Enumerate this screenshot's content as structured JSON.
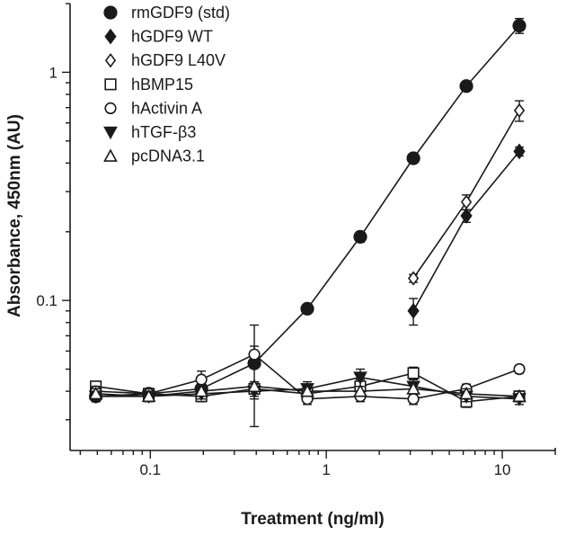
{
  "chart_data": {
    "type": "line",
    "xlabel": "Treatment (ng/ml)",
    "ylabel": "Absorbance, 450nm (AU)",
    "xscale": "log",
    "yscale": "log",
    "xlim": [
      0.035,
      20
    ],
    "ylim": [
      0.022,
      2.0
    ],
    "xticks": [
      {
        "value": 0.1,
        "label": "0.1"
      },
      {
        "value": 1,
        "label": "1"
      },
      {
        "value": 10,
        "label": "10"
      }
    ],
    "yticks": [
      {
        "value": 0.1,
        "label": "0.1"
      },
      {
        "value": 1,
        "label": "1"
      }
    ],
    "legend_position": "top-left",
    "series": [
      {
        "name": "rmGDF9 (std)",
        "marker": "circle-filled",
        "color": "#1a1a1a",
        "x": [
          0.049,
          0.098,
          0.195,
          0.39,
          0.78,
          1.56,
          3.125,
          6.25,
          12.5
        ],
        "y": [
          0.038,
          0.039,
          0.041,
          0.053,
          0.092,
          0.19,
          0.42,
          0.87,
          1.6
        ],
        "err": [
          0.002,
          0.002,
          0.003,
          0.025,
          0.004,
          0.01,
          0.02,
          0.04,
          0.12
        ]
      },
      {
        "name": "hGDF9 WT",
        "marker": "diamond-filled",
        "color": "#1a1a1a",
        "x": [
          3.125,
          6.25,
          12.5
        ],
        "y": [
          0.09,
          0.235,
          0.45
        ],
        "err": [
          0.012,
          0.015,
          0.02
        ]
      },
      {
        "name": "hGDF9 L40V",
        "marker": "diamond-open",
        "color": "#1a1a1a",
        "x": [
          3.125,
          6.25,
          12.5
        ],
        "y": [
          0.125,
          0.27,
          0.68
        ],
        "err": [
          0.005,
          0.02,
          0.07
        ]
      },
      {
        "name": "hBMP15",
        "marker": "square-open",
        "color": "#1a1a1a",
        "x": [
          0.049,
          0.098,
          0.195,
          0.39,
          0.78,
          1.56,
          3.125,
          6.25,
          12.5
        ],
        "y": [
          0.042,
          0.039,
          0.038,
          0.041,
          0.039,
          0.042,
          0.048,
          0.036,
          0.038
        ],
        "err": [
          0.002,
          0.002,
          0.002,
          0.003,
          0.002,
          0.003,
          0.003,
          0.002,
          0.002
        ]
      },
      {
        "name": "hActivin A",
        "marker": "circle-open",
        "color": "#1a1a1a",
        "x": [
          0.049,
          0.098,
          0.195,
          0.39,
          0.78,
          1.56,
          3.125,
          6.25,
          12.5
        ],
        "y": [
          0.04,
          0.039,
          0.045,
          0.058,
          0.037,
          0.038,
          0.037,
          0.041,
          0.05
        ],
        "err": [
          0.002,
          0.002,
          0.004,
          0.005,
          0.002,
          0.002,
          0.002,
          0.002,
          0.002
        ]
      },
      {
        "name": "hTGF-β3",
        "marker": "triangle-down-filled",
        "color": "#1a1a1a",
        "x": [
          0.049,
          0.098,
          0.195,
          0.39,
          0.78,
          1.56,
          3.125,
          6.25,
          12.5
        ],
        "y": [
          0.038,
          0.038,
          0.039,
          0.04,
          0.041,
          0.046,
          0.042,
          0.038,
          0.037
        ],
        "err": [
          0.002,
          0.002,
          0.002,
          0.003,
          0.003,
          0.004,
          0.003,
          0.002,
          0.002
        ]
      },
      {
        "name": "pcDNA3.1",
        "marker": "triangle-up-open",
        "color": "#1a1a1a",
        "x": [
          0.049,
          0.098,
          0.195,
          0.39,
          0.78,
          1.56,
          3.125,
          6.25,
          12.5
        ],
        "y": [
          0.039,
          0.038,
          0.04,
          0.042,
          0.04,
          0.04,
          0.041,
          0.039,
          0.038
        ],
        "err": [
          0.002,
          0.002,
          0.002,
          0.002,
          0.002,
          0.002,
          0.002,
          0.002,
          0.002
        ]
      }
    ]
  }
}
